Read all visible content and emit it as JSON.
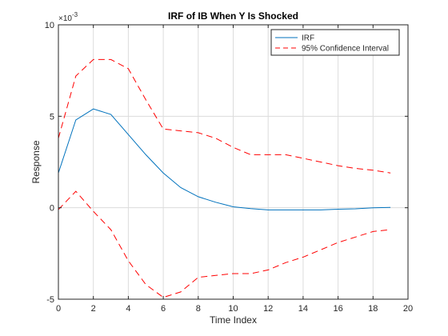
{
  "chart_data": {
    "type": "line",
    "title": "IRF of IB When Y Is Shocked",
    "xlabel": "Time Index",
    "ylabel": "Response",
    "y_exponent_label": "×10",
    "y_exponent_power": "-3",
    "xlim": [
      0,
      20
    ],
    "ylim": [
      -5,
      10
    ],
    "x_ticks": [
      0,
      2,
      4,
      6,
      8,
      10,
      12,
      14,
      16,
      18,
      20
    ],
    "y_ticks": [
      -5,
      0,
      5,
      10
    ],
    "grid": true,
    "legend_position": "top-right",
    "x": [
      0,
      1,
      2,
      3,
      4,
      5,
      6,
      7,
      8,
      9,
      10,
      11,
      12,
      13,
      14,
      15,
      16,
      17,
      18,
      19
    ],
    "series": [
      {
        "name": "IRF",
        "style": "solid",
        "color": "#0072BD",
        "values": [
          1.9,
          4.8,
          5.4,
          5.1,
          4.0,
          2.9,
          1.9,
          1.1,
          0.6,
          0.3,
          0.05,
          -0.05,
          -0.12,
          -0.12,
          -0.12,
          -0.12,
          -0.08,
          -0.06,
          0.0,
          0.02
        ]
      },
      {
        "name": "95% Confidence Interval",
        "style": "dashed",
        "color": "#FF0000",
        "values": [
          3.8,
          7.2,
          8.1,
          8.1,
          7.6,
          5.9,
          4.3,
          4.2,
          4.1,
          3.8,
          3.3,
          2.9,
          2.9,
          2.9,
          2.7,
          2.5,
          2.3,
          2.15,
          2.05,
          1.9
        ]
      },
      {
        "name": "",
        "style": "dashed",
        "color": "#FF0000",
        "values": [
          -0.1,
          0.9,
          -0.2,
          -1.2,
          -2.9,
          -4.2,
          -4.9,
          -4.6,
          -3.8,
          -3.7,
          -3.6,
          -3.6,
          -3.4,
          -3.0,
          -2.7,
          -2.3,
          -1.9,
          -1.6,
          -1.3,
          -1.2
        ]
      }
    ]
  }
}
